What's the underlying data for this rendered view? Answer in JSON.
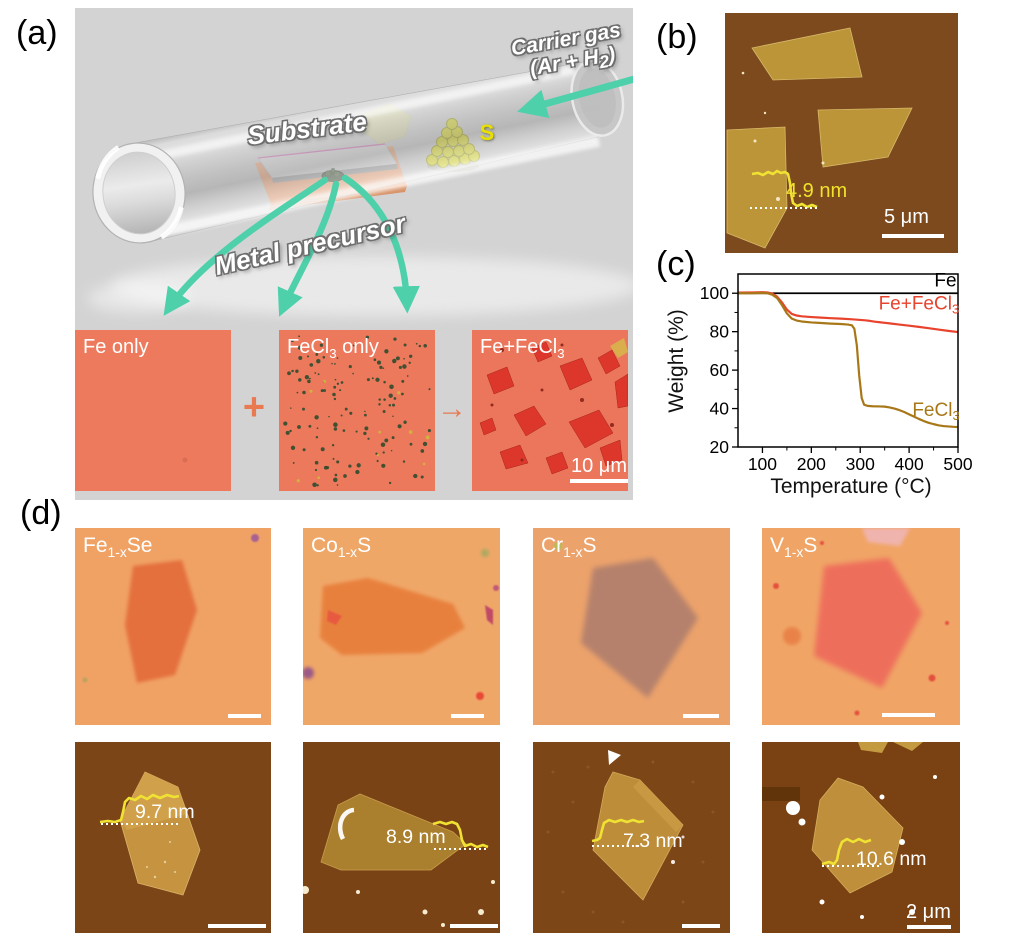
{
  "panels": {
    "a": {
      "label": "(a)",
      "schematic": {
        "substrate": "Substrate",
        "metal_precursor": "Metal precursor",
        "sulfur": "S",
        "carrier_gas_line1": "Carrier gas",
        "carrier_gas_line2": {
          "pre": "(Ar + H",
          "sub": "2",
          "post": ")"
        }
      },
      "optical_images": [
        {
          "label": {
            "pre": "Fe only",
            "sub": "",
            "post": ""
          }
        },
        {
          "label": {
            "pre": "FeCl",
            "sub": "3",
            "post": " only"
          }
        },
        {
          "label": {
            "pre": "Fe+FeCl",
            "sub": "3",
            "post": ""
          },
          "scale_bar": "10 μm"
        }
      ],
      "plus_sign": "+",
      "arrow_sign": "→"
    },
    "b": {
      "label": "(b)",
      "thickness": "4.9 nm",
      "scale_bar": "5 μm"
    },
    "c": {
      "label": "(c)",
      "chart_data": {
        "type": "line",
        "title": "",
        "xlabel": "Temperature (°C)",
        "ylabel": "Weight (%)",
        "xlim": [
          50,
          500
        ],
        "ylim": [
          20,
          110
        ],
        "xticks": [
          100,
          200,
          300,
          400,
          500
        ],
        "yticks": [
          20,
          40,
          60,
          80,
          100
        ],
        "x_minor_ticks": [
          150,
          250,
          350,
          450
        ],
        "y_minor_ticks": [
          30,
          50,
          70,
          90
        ],
        "grid": false,
        "legend_position": "inline-labels",
        "series": [
          {
            "name": "Fe",
            "color": "#000000",
            "label": {
              "pre": "Fe",
              "sub": "",
              "post": ""
            },
            "label_anchor": {
              "x": 497,
              "y": 103.5,
              "align": "end"
            },
            "x": [
              50,
              500
            ],
            "y": [
              100,
              100
            ]
          },
          {
            "name": "Fe+FeCl3",
            "color": "#e8432d",
            "label": {
              "pre": "Fe+FeCl",
              "sub": "3",
              "post": ""
            },
            "label_anchor": {
              "x": 420,
              "y": 91.5,
              "align": "middle"
            },
            "x": [
              50,
              80,
              100,
              110,
              120,
              130,
              140,
              150,
              160,
              170,
              180,
              200,
              220,
              240,
              260,
              280,
              300,
              310,
              320,
              330,
              340,
              350,
              360,
              380,
              400,
              420,
              440,
              460,
              480,
              500
            ],
            "y": [
              100.3,
              100.4,
              100.5,
              100.4,
              99.8,
              98.2,
              95.2,
              91.5,
              89.2,
              88.4,
              88.0,
              87.6,
              87.3,
              87.0,
              86.8,
              86.5,
              86.1,
              85.9,
              85.6,
              85.2,
              84.9,
              84.6,
              84.3,
              83.7,
              83.1,
              82.5,
              81.8,
              81.1,
              80.4,
              79.8
            ]
          },
          {
            "name": "FeCl3",
            "color": "#a87818",
            "label": {
              "pre": "FeCl",
              "sub": "3",
              "post": ""
            },
            "label_anchor": {
              "x": 455,
              "y": 36,
              "align": "middle"
            },
            "x": [
              50,
              80,
              100,
              110,
              120,
              130,
              140,
              150,
              160,
              170,
              180,
              200,
              220,
              240,
              260,
              275,
              283,
              288,
              293,
              298,
              303,
              308,
              315,
              325,
              340,
              350,
              360,
              370,
              380,
              390,
              400,
              410,
              420,
              430,
              440,
              450,
              460,
              470,
              480,
              490,
              500
            ],
            "y": [
              100,
              100,
              100.1,
              100,
              99.2,
              97.5,
              93.8,
              89.5,
              86.8,
              85.8,
              85.3,
              84.8,
              84.5,
              84.2,
              84.0,
              83.7,
              83.3,
              81.5,
              73,
              57,
              45.5,
              42.0,
              41.4,
              41.2,
              41.1,
              41.0,
              40.6,
              40.0,
              39.2,
              38.2,
              37.0,
              35.8,
              34.6,
              33.5,
              32.6,
              31.9,
              31.3,
              30.9,
              30.7,
              30.5,
              30.4
            ]
          }
        ]
      }
    },
    "d": {
      "label": "(d)",
      "columns": [
        {
          "material": {
            "pre": "Fe",
            "sub": "1-x",
            "post": "Se"
          },
          "thickness": "9.7 nm"
        },
        {
          "material": {
            "pre": "Co",
            "sub": "1-x",
            "post": "S"
          },
          "thickness": "8.9 nm"
        },
        {
          "material": {
            "pre": "Cr",
            "sub": "1-x",
            "post": "S"
          },
          "thickness": "7.3 nm"
        },
        {
          "material": {
            "pre": "V",
            "sub": "1-x",
            "post": "S"
          },
          "thickness": "10.6 nm",
          "scale_bar": "2 μm"
        }
      ]
    }
  },
  "colors": {
    "panel_bg": "#d3d3d3",
    "teal_arrow": "#4ed0ab",
    "optical_salmon": "#ee7a5e",
    "flake_red": "#dd3429",
    "speckle_green": "#2f4b2e",
    "afm_brown": "#7a4517",
    "afm_flake_tan": "#c49339",
    "profile_yellow": "#f0e232",
    "orange_operator": "#e87950",
    "chart_red": "#e8432d",
    "chart_olive": "#a87818"
  }
}
